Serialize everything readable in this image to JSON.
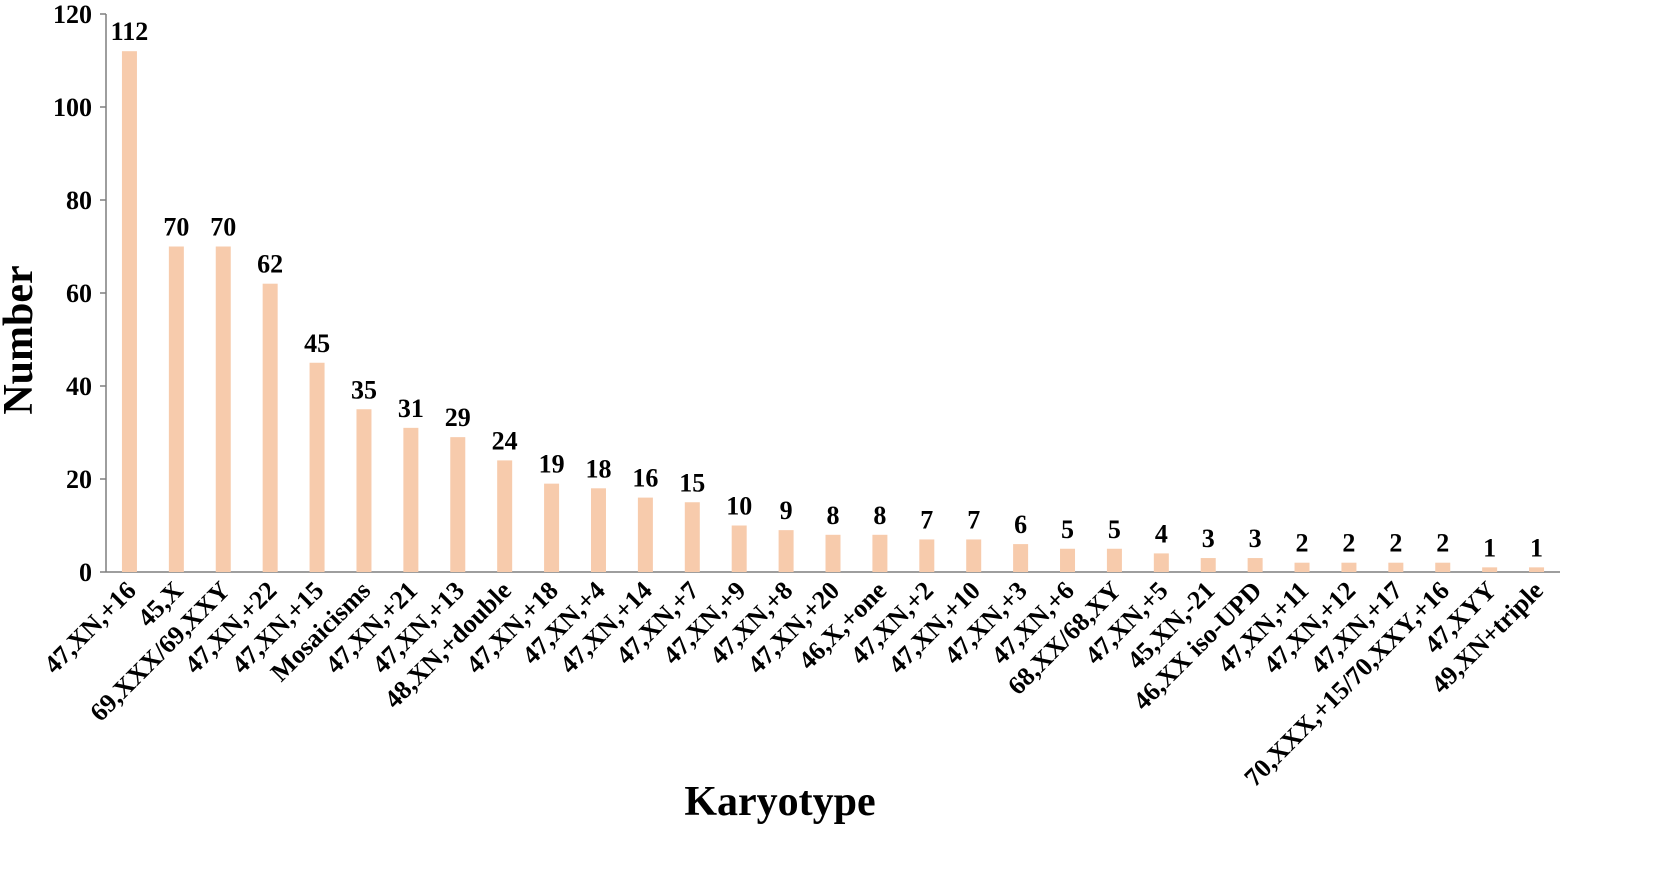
{
  "chart_data": {
    "type": "bar",
    "title": "",
    "xlabel": "Karyotype",
    "ylabel": "Number",
    "ylim": [
      0,
      120
    ],
    "yticks": [
      0,
      20,
      40,
      60,
      80,
      100,
      120
    ],
    "grid": false,
    "legend": "none",
    "bar_color": "#F7CBAC",
    "categories": [
      "47,XN,+16",
      "45,X",
      "69,XXX/69,XXY",
      "47,XN,+22",
      "47,XN,+15",
      "Mosaicisms",
      "47,XN,+21",
      "47,XN,+13",
      "48,XN,+double",
      "47,XN,+18",
      "47,XN,+4",
      "47,XN,+14",
      "47,XN,+7",
      "47,XN,+9",
      "47,XN,+8",
      "47,XN,+20",
      "46,X,+one",
      "47,XN,+2",
      "47,XN,+10",
      "47,XN,+3",
      "47,XN,+6",
      "68,XX/68,XY",
      "47,XN,+5",
      "45,XN,-21",
      "46,XX  iso-UPD",
      "47,XN,+11",
      "47,XN,+12",
      "47,XN,+17",
      "70,XXX,+15/70,XXY,+16",
      "47,XYY",
      "49,XN+triple"
    ],
    "values": [
      112,
      70,
      70,
      62,
      45,
      35,
      31,
      29,
      24,
      19,
      18,
      16,
      15,
      10,
      9,
      8,
      8,
      7,
      7,
      6,
      5,
      5,
      4,
      3,
      3,
      2,
      2,
      2,
      2,
      1,
      1
    ]
  }
}
